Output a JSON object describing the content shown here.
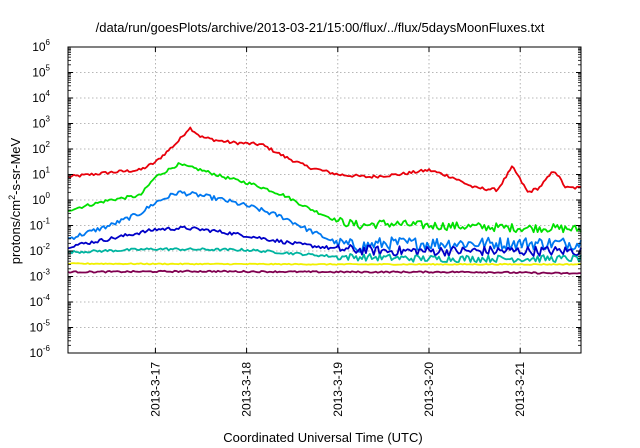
{
  "chart_data": {
    "type": "line",
    "title": "/data/run/goesPlots/archive/2013-03-21/15:00/flux/../flux/5daysMoonFluxes.txt",
    "xlabel": "Coordinated Universal Time (UTC)",
    "ylabel": {
      "prefix": "protons/cm",
      "sup": "2",
      "suffix": "-s-sr-MeV"
    },
    "yscale": "log",
    "ylim": [
      1e-06,
      1000000.0
    ],
    "y_ticks": [
      {
        "base": "10",
        "exp": "-6"
      },
      {
        "base": "10",
        "exp": "-5"
      },
      {
        "base": "10",
        "exp": "-4"
      },
      {
        "base": "10",
        "exp": "-3"
      },
      {
        "base": "10",
        "exp": "-2"
      },
      {
        "base": "10",
        "exp": "-1"
      },
      {
        "base": "10",
        "exp": "0"
      },
      {
        "base": "10",
        "exp": "1"
      },
      {
        "base": "10",
        "exp": "2"
      },
      {
        "base": "10",
        "exp": "3"
      },
      {
        "base": "10",
        "exp": "4"
      },
      {
        "base": "10",
        "exp": "5"
      },
      {
        "base": "10",
        "exp": "6"
      }
    ],
    "xlim": [
      "2013-03-16 01:00",
      "2013-03-21 16:00"
    ],
    "x_ticks": [
      "2013-3-17",
      "2013-3-18",
      "2013-3-19",
      "2013-3-20",
      "2013-3-21"
    ],
    "grid": true,
    "series": [
      {
        "color": "#e8000b",
        "x": [
          "2013-03-16 01:00",
          "2013-03-16 12:00",
          "2013-03-16 20:00",
          "2013-03-17 00:00",
          "2013-03-17 06:00",
          "2013-03-17 09:00",
          "2013-03-17 12:00",
          "2013-03-17 16:00",
          "2013-03-17 20:00",
          "2013-03-18 04:00",
          "2013-03-18 10:00",
          "2013-03-18 16:00",
          "2013-03-19 00:00",
          "2013-03-19 08:00",
          "2013-03-19 16:00",
          "2013-03-20 00:00",
          "2013-03-20 06:00",
          "2013-03-20 12:00",
          "2013-03-20 18:00",
          "2013-03-20 22:00",
          "2013-03-21 02:00",
          "2013-03-21 05:00",
          "2013-03-21 09:00",
          "2013-03-21 12:00",
          "2013-03-21 16:00"
        ],
        "y": [
          8,
          12,
          15,
          30,
          200,
          700,
          300,
          220,
          180,
          150,
          50,
          20,
          10,
          8,
          10,
          15,
          8,
          3,
          2.5,
          20,
          2,
          3,
          15,
          3,
          3
        ]
      },
      {
        "color": "#00e000",
        "x": [
          "2013-03-16 01:00",
          "2013-03-16 12:00",
          "2013-03-16 20:00",
          "2013-03-17 00:00",
          "2013-03-17 06:00",
          "2013-03-17 12:00",
          "2013-03-17 18:00",
          "2013-03-18 02:00",
          "2013-03-18 10:00",
          "2013-03-18 16:00",
          "2013-03-19 00:00",
          "2013-03-19 06:00",
          "2013-03-19 12:00",
          "2013-03-20 00:00",
          "2013-03-20 12:00",
          "2013-03-21 00:00",
          "2013-03-21 08:00",
          "2013-03-21 16:00"
        ],
        "y": [
          0.4,
          1.0,
          1.5,
          8,
          25,
          15,
          8,
          4,
          1.5,
          0.5,
          0.15,
          0.1,
          0.12,
          0.1,
          0.09,
          0.08,
          0.08,
          0.07
        ]
      },
      {
        "color": "#0078f0",
        "x": [
          "2013-03-16 01:00",
          "2013-03-16 12:00",
          "2013-03-16 20:00",
          "2013-03-17 00:00",
          "2013-03-17 06:00",
          "2013-03-17 12:00",
          "2013-03-17 18:00",
          "2013-03-18 02:00",
          "2013-03-18 10:00",
          "2013-03-18 16:00",
          "2013-03-19 00:00",
          "2013-03-19 06:00",
          "2013-03-19 12:00",
          "2013-03-20 00:00",
          "2013-03-20 12:00",
          "2013-03-21 00:00",
          "2013-03-21 08:00",
          "2013-03-21 16:00"
        ],
        "y": [
          0.03,
          0.1,
          0.3,
          0.8,
          2,
          1.5,
          1,
          0.5,
          0.2,
          0.07,
          0.02,
          0.015,
          0.02,
          0.02,
          0.02,
          0.02,
          0.02,
          0.02
        ]
      },
      {
        "color": "#0000c8",
        "x": [
          "2013-03-16 01:00",
          "2013-03-16 12:00",
          "2013-03-17 00:00",
          "2013-03-17 08:00",
          "2013-03-17 16:00",
          "2013-03-18 00:00",
          "2013-03-18 12:00",
          "2013-03-19 00:00",
          "2013-03-19 12:00",
          "2013-03-20 00:00",
          "2013-03-20 12:00",
          "2013-03-21 00:00",
          "2013-03-21 16:00"
        ],
        "y": [
          0.015,
          0.03,
          0.07,
          0.08,
          0.06,
          0.04,
          0.02,
          0.012,
          0.01,
          0.01,
          0.01,
          0.01,
          0.01
        ]
      },
      {
        "color": "#00b4a0",
        "x": [
          "2013-03-16 01:00",
          "2013-03-17 00:00",
          "2013-03-18 00:00",
          "2013-03-19 00:00",
          "2013-03-20 00:00",
          "2013-03-21 00:00",
          "2013-03-21 16:00"
        ],
        "y": [
          0.009,
          0.012,
          0.011,
          0.006,
          0.005,
          0.005,
          0.005
        ]
      },
      {
        "color": "#f0f000",
        "x": [
          "2013-03-16 01:00",
          "2013-03-17 12:00",
          "2013-03-19 00:00",
          "2013-03-20 12:00",
          "2013-03-21 16:00"
        ],
        "y": [
          0.0032,
          0.0031,
          0.003,
          0.003,
          0.003
        ]
      },
      {
        "color": "#800050",
        "x": [
          "2013-03-16 01:00",
          "2013-03-17 12:00",
          "2013-03-19 00:00",
          "2013-03-20 12:00",
          "2013-03-21 16:00"
        ],
        "y": [
          0.0015,
          0.0016,
          0.0015,
          0.0015,
          0.0013
        ]
      }
    ]
  }
}
